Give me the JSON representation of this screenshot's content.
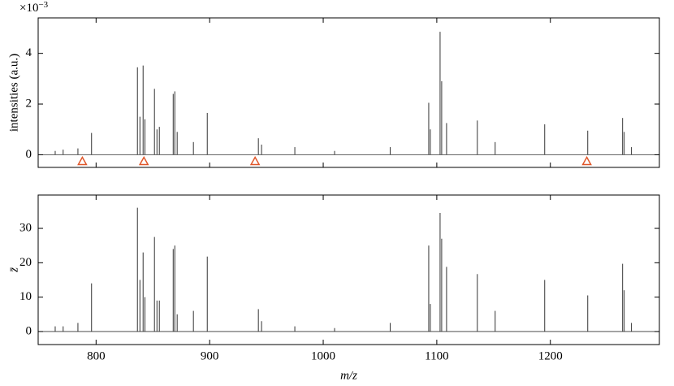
{
  "chart_data": [
    {
      "type": "stem",
      "ylabel": "intensities (a.u.)",
      "y_scale_label": {
        "base": "×10",
        "exponent": "−3"
      },
      "color": "#333333",
      "x": [
        764,
        771,
        784,
        796,
        836.4,
        838.6,
        841.4,
        843,
        851.4,
        853.6,
        855.7,
        867.9,
        869.3,
        871.4,
        885.7,
        897.9,
        942.9,
        945.7,
        975,
        1010,
        1059,
        1092.9,
        1094.3,
        1102.9,
        1104.3,
        1108.6,
        1135.7,
        1151.4,
        1195,
        1232.9,
        1263.6,
        1265,
        1271.4
      ],
      "values": [
        0.15,
        0.2,
        0.25,
        0.86,
        3.45,
        1.5,
        3.52,
        1.4,
        2.6,
        1.0,
        1.1,
        2.4,
        2.5,
        0.9,
        0.5,
        1.65,
        0.65,
        0.4,
        0.3,
        0.15,
        0.3,
        2.05,
        1.0,
        4.85,
        2.9,
        1.25,
        1.35,
        0.5,
        1.2,
        0.95,
        1.45,
        0.9,
        0.3
      ],
      "markers": {
        "x": [
          787.9,
          842.1,
          940,
          1232.1
        ],
        "values": [
          -0.26,
          -0.26,
          -0.26,
          -0.26
        ],
        "color": "#e0572a"
      },
      "xlim": [
        749,
        1296
      ],
      "xticks": [
        800,
        900,
        1000,
        1100,
        1200
      ],
      "ylim": [
        -0.5,
        5.4
      ],
      "yticks": [
        0,
        2,
        4
      ]
    },
    {
      "type": "stem",
      "ylabel": "z̄",
      "xlabel": "m/z",
      "color": "#333333",
      "x": [
        764,
        771,
        784,
        796,
        836.4,
        838.6,
        841.4,
        843,
        851.4,
        853.6,
        855.7,
        867.9,
        869.3,
        871.4,
        885.7,
        897.9,
        942.9,
        945.7,
        975,
        1010,
        1059,
        1092.9,
        1094.3,
        1102.9,
        1104.3,
        1108.6,
        1135.7,
        1151.4,
        1195,
        1232.9,
        1263.6,
        1265,
        1271.4
      ],
      "values": [
        1.5,
        1.5,
        2.5,
        14,
        36,
        15,
        23,
        10,
        27.5,
        9,
        9,
        24,
        25,
        5,
        6,
        21.8,
        6.5,
        3,
        1.5,
        1,
        2.5,
        25,
        8,
        34.5,
        27,
        18.8,
        16.7,
        6,
        15,
        10.5,
        19.7,
        12,
        2.5
      ],
      "xlim": [
        749,
        1296
      ],
      "xticks": [
        800,
        900,
        1000,
        1100,
        1200
      ],
      "ylim": [
        -3.8,
        39.7
      ],
      "yticks": [
        0,
        10,
        20,
        30
      ]
    }
  ]
}
